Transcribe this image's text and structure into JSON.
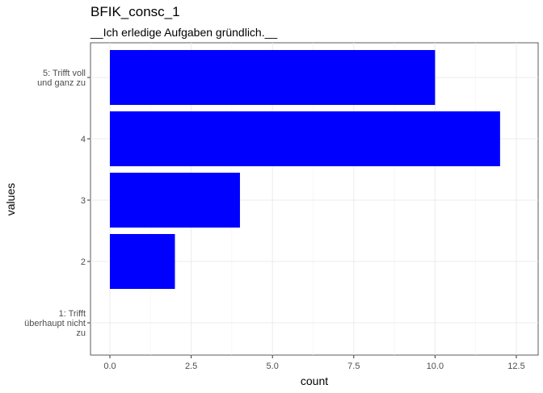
{
  "chart_data": {
    "type": "bar",
    "orientation": "horizontal",
    "title": "BFIK_consc_1",
    "subtitle": "__Ich erledige Aufgaben gründlich.__",
    "xlabel": "count",
    "ylabel": "values",
    "categories": [
      [
        "5: Trifft voll",
        "und ganz zu"
      ],
      [
        "4"
      ],
      [
        "3"
      ],
      [
        "2"
      ],
      [
        "1: Trifft",
        "überhaupt nicht",
        "zu"
      ]
    ],
    "values": [
      10,
      12,
      4,
      2,
      0
    ],
    "xlim": [
      0,
      12.5
    ],
    "xticks": [
      "0.0",
      "2.5",
      "5.0",
      "7.5",
      "10.0",
      "12.5"
    ],
    "bar_color": "#0000ff",
    "grid": true
  }
}
